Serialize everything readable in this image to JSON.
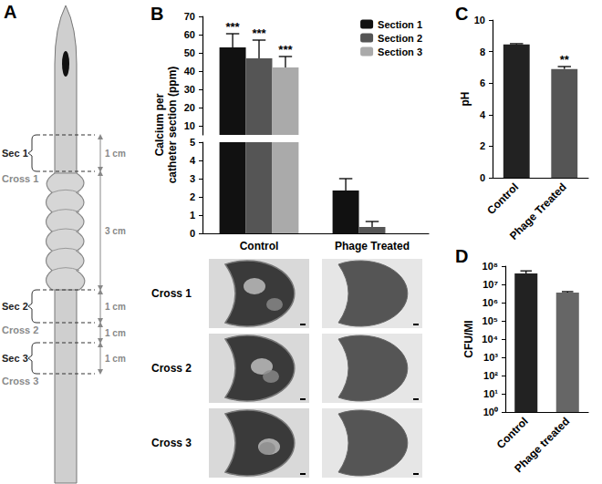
{
  "diagram": {
    "panel": "A",
    "sections": [
      "Sec 1",
      "Sec 2",
      "Sec 3"
    ],
    "crosses": [
      "Cross 1",
      "Cross 2",
      "Cross 3"
    ],
    "dimensions": [
      "1 cm",
      "3 cm",
      "1 cm",
      "1 cm",
      "1 cm"
    ]
  },
  "images": {
    "rows": [
      "Cross 1",
      "Cross 2",
      "Cross 3"
    ]
  },
  "chart_data": [
    {
      "panel": "B",
      "type": "bar",
      "y_label": "Calcium per\ncatheter section (ppm)",
      "categories": [
        "Control",
        "Phage Treated"
      ],
      "series": [
        {
          "name": "Section 1",
          "color": "#111111",
          "values": [
            53,
            2.35
          ],
          "errors": [
            7.5,
            0.65
          ]
        },
        {
          "name": "Section 2",
          "color": "#555555",
          "values": [
            47,
            0.35
          ],
          "errors": [
            10,
            0.3
          ]
        },
        {
          "name": "Section 3",
          "color": "#aaaaaa",
          "values": [
            42,
            0
          ],
          "errors": [
            6,
            0
          ]
        }
      ],
      "annotations": [
        {
          "series": "Section 1",
          "category": "Control",
          "text": "***"
        },
        {
          "series": "Section 2",
          "category": "Control",
          "text": "***"
        },
        {
          "series": "Section 3",
          "category": "Control",
          "text": "***"
        }
      ],
      "ylim": [
        0,
        70
      ],
      "yticks": [
        0,
        1,
        2,
        3,
        4,
        5,
        10,
        20,
        30,
        40,
        50,
        60,
        70
      ],
      "axis_break": 5,
      "legend": "top-right",
      "grid": false
    },
    {
      "panel": "C",
      "type": "bar",
      "y_label": "pH",
      "categories": [
        "Control",
        "Phage Treated"
      ],
      "values": [
        8.45,
        6.9
      ],
      "errors": [
        0.05,
        0.15
      ],
      "colors": [
        "#222222",
        "#555555"
      ],
      "annotations": [
        {
          "category": "Phage Treated",
          "text": "**"
        }
      ],
      "ylim": [
        0,
        10
      ],
      "yticks": [
        0,
        2,
        4,
        6,
        8,
        10
      ],
      "grid": false
    },
    {
      "panel": "D",
      "type": "bar",
      "log": "y",
      "y_label": "CFU/Ml",
      "categories": [
        "Control",
        "Phage treated"
      ],
      "values": [
        40000000,
        3500000
      ],
      "errors": [
        15000000,
        500000
      ],
      "colors": [
        "#222222",
        "#666666"
      ],
      "ylim": [
        1,
        100000000
      ],
      "yticks": [
        {
          "value": 1,
          "label": "10⁰"
        },
        {
          "value": 10,
          "label": "10¹"
        },
        {
          "value": 100,
          "label": "10²"
        },
        {
          "value": 1000,
          "label": "10³"
        },
        {
          "value": 10000,
          "label": "10⁴"
        },
        {
          "value": 100000,
          "label": "10⁵"
        },
        {
          "value": 1000000,
          "label": "10⁶"
        },
        {
          "value": 10000000,
          "label": "10⁷"
        },
        {
          "value": 100000000,
          "label": "10⁸"
        }
      ],
      "grid": false
    }
  ]
}
